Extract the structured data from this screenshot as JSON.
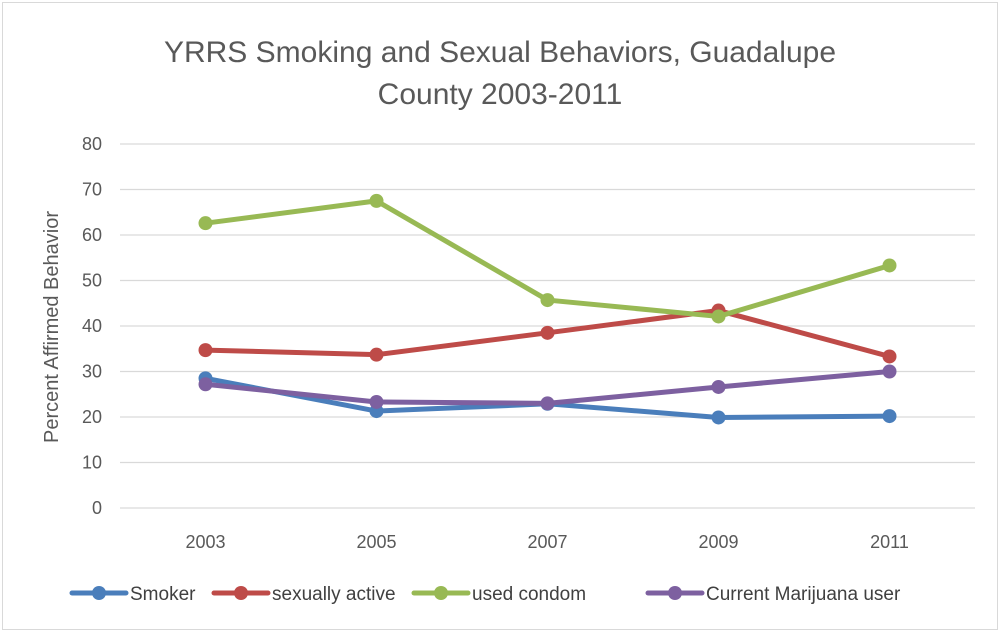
{
  "chart_data": {
    "type": "line",
    "title_lines": [
      "YRRS Smoking and Sexual Behaviors, Guadalupe",
      "County 2003-2011"
    ],
    "xlabel": "",
    "ylabel": "Percent Affirmed Behavior",
    "categories": [
      "2003",
      "2005",
      "2007",
      "2009",
      "2011"
    ],
    "ylim": [
      0,
      80
    ],
    "yticks": [
      0,
      10,
      20,
      30,
      40,
      50,
      60,
      70,
      80
    ],
    "grid": true,
    "legend_position": "bottom",
    "series": [
      {
        "name": "Smoker",
        "color": "#4a7ebb",
        "values": [
          28.5,
          21.3,
          22.9,
          19.9,
          20.2
        ]
      },
      {
        "name": "sexually active",
        "color": "#be4b48",
        "values": [
          34.7,
          33.7,
          38.5,
          43.4,
          33.3
        ]
      },
      {
        "name": "used condom",
        "color": "#98b954",
        "values": [
          62.6,
          67.5,
          45.7,
          42.1,
          53.3
        ]
      },
      {
        "name": "Current Marijuana user",
        "color": "#7d60a0",
        "values": [
          27.2,
          23.3,
          23.0,
          26.6,
          30.0
        ]
      }
    ]
  }
}
